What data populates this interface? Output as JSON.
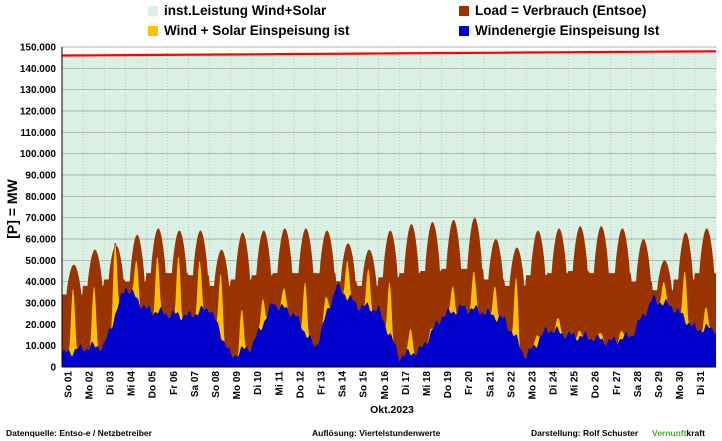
{
  "legend": [
    {
      "label": "inst.Leistung Wind+Solar",
      "color": "#d9f0e3"
    },
    {
      "label": "Load =  Verbrauch (Entsoe)",
      "color": "#993300"
    },
    {
      "label": "Wind + Solar Einspeisung ist",
      "color": "#ffc000"
    },
    {
      "label": "Windenergie Einspeisung Ist",
      "color": "#0000cc"
    }
  ],
  "chart_data": {
    "type": "area",
    "ylabel": "[P] = MW",
    "xlabel": "Okt.2023",
    "ylim": [
      0,
      150000
    ],
    "yticks": [
      "0",
      "10.000",
      "20.000",
      "30.000",
      "40.000",
      "50.000",
      "60.000",
      "70.000",
      "80.000",
      "90.000",
      "100.000",
      "110.000",
      "120.000",
      "130.000",
      "140.000",
      "150.000"
    ],
    "categories": [
      "So 01",
      "Mo 02",
      "Di 03",
      "Mi 04",
      "Do 05",
      "Fr 06",
      "Sa 07",
      "So 08",
      "Mo 09",
      "Di 10",
      "Mi 11",
      "Do 12",
      "Fr 13",
      "Sa 14",
      "So 15",
      "Mo 16",
      "Di 17",
      "Mi 18",
      "Do 19",
      "Fr 20",
      "Sa 21",
      "So 22",
      "Mo 23",
      "Di 24",
      "Mi 25",
      "Do 26",
      "Fr 27",
      "Sa 28",
      "So 29",
      "Mo 30",
      "Di 31"
    ],
    "series": [
      {
        "name": "inst.Leistung Wind+Solar",
        "color": "#d9f0e3",
        "line_color": "#ff0000",
        "start": 146000,
        "end": 148000
      },
      {
        "name": "Load =  Verbrauch (Entsoe)",
        "color": "#993300",
        "daily_max": [
          48,
          55,
          57,
          62,
          65,
          64,
          64,
          55,
          63,
          64,
          65,
          65,
          64,
          58,
          55,
          64,
          67,
          68,
          69,
          70,
          60,
          56,
          64,
          65,
          66,
          66,
          65,
          60,
          50,
          63,
          65
        ],
        "daily_min": [
          34,
          38,
          41,
          40,
          44,
          44,
          43,
          38,
          41,
          43,
          44,
          44,
          44,
          40,
          38,
          42,
          44,
          45,
          46,
          46,
          41,
          38,
          43,
          44,
          45,
          44,
          44,
          40,
          36,
          41,
          44
        ]
      },
      {
        "name": "Wind + Solar Einspeisung ist",
        "color": "#ffc000",
        "daily_peak": [
          37,
          38,
          58,
          50,
          52,
          52,
          50,
          44,
          27,
          32,
          37,
          40,
          33,
          50,
          46,
          40,
          18,
          18,
          38,
          45,
          38,
          42,
          15,
          23,
          17,
          16,
          17,
          15,
          40,
          45,
          28
        ]
      },
      {
        "name": "Windenergie Einspeisung Ist",
        "color": "#0000cc",
        "daily_avg": [
          6,
          9,
          10,
          38,
          27,
          25,
          24,
          28,
          5,
          10,
          30,
          25,
          9,
          38,
          29,
          27,
          5,
          8,
          24,
          28,
          26,
          22,
          5,
          18,
          15,
          14,
          12,
          15,
          32,
          28,
          18
        ]
      }
    ]
  },
  "footer": {
    "source": "Datenquelle:  Entso-e  / Netzbetreiber",
    "resolution": "Auflösung: Viertelstundenwerte",
    "author": "Darstellung:  Rolf Schuster",
    "brand_a": "Vernunft",
    "brand_b": "kraft"
  }
}
